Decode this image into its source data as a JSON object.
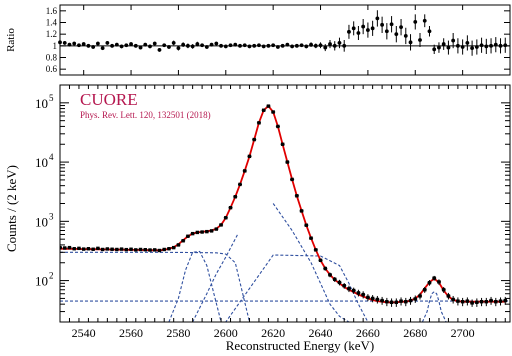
{
  "colors": {
    "data": "#000000",
    "fit": "#e00000",
    "component": "#3050a0",
    "annotation": "#b5174f",
    "ref_line": "#000000"
  },
  "annotation": {
    "title": "CUORE",
    "subtitle": "Phys. Rev. Lett. 120, 132501 (2018)"
  },
  "chart_data": [
    {
      "type": "scatter",
      "panel": "ratio",
      "title": "",
      "ylabel": "Ratio",
      "xlim": [
        2530,
        2720
      ],
      "ylim": [
        0.5,
        1.7
      ],
      "y_ticks": [
        "0.6",
        "0.8",
        "1",
        "1.2",
        "1.4",
        "1.6"
      ],
      "y_tick_values": [
        0.6,
        0.8,
        1.0,
        1.2,
        1.4,
        1.6
      ],
      "reference_line": 1.0,
      "x": [
        2530,
        2532,
        2534,
        2536,
        2538,
        2540,
        2542,
        2544,
        2546,
        2548,
        2550,
        2552,
        2554,
        2556,
        2558,
        2560,
        2562,
        2564,
        2566,
        2568,
        2570,
        2572,
        2574,
        2576,
        2578,
        2580,
        2582,
        2584,
        2586,
        2588,
        2590,
        2592,
        2594,
        2596,
        2598,
        2600,
        2602,
        2604,
        2606,
        2608,
        2610,
        2612,
        2614,
        2616,
        2618,
        2620,
        2622,
        2624,
        2626,
        2628,
        2630,
        2632,
        2634,
        2636,
        2638,
        2640,
        2642,
        2644,
        2646,
        2648,
        2650,
        2652,
        2654,
        2656,
        2658,
        2660,
        2662,
        2664,
        2666,
        2668,
        2670,
        2672,
        2674,
        2676,
        2678,
        2680,
        2682,
        2684,
        2686,
        2688,
        2690,
        2692,
        2694,
        2696,
        2698,
        2700,
        2702,
        2704,
        2706,
        2708,
        2710,
        2712,
        2714,
        2716,
        2718
      ],
      "values": [
        1.06,
        1.05,
        1.02,
        1.04,
        1.01,
        1.03,
        1.0,
        0.98,
        1.04,
        0.96,
        1.05,
        1.0,
        1.02,
        0.99,
        1.01,
        1.03,
        1.0,
        0.97,
        1.02,
        0.99,
        1.04,
        0.93,
        1.01,
        0.98,
        1.05,
        0.96,
        1.02,
        1.0,
        0.99,
        1.03,
        1.01,
        0.98,
        1.02,
        1.04,
        1.0,
        0.99,
        1.01,
        1.02,
        1.0,
        1.01,
        0.99,
        1.0,
        1.01,
        0.99,
        1.0,
        1.01,
        0.98,
        1.0,
        1.02,
        0.99,
        1.0,
        1.01,
        0.99,
        1.02,
        1.0,
        1.01,
        0.97,
        1.03,
        1.0,
        1.05,
        1.0,
        1.24,
        1.3,
        1.22,
        1.33,
        1.27,
        1.3,
        1.47,
        1.36,
        1.25,
        1.37,
        1.2,
        1.32,
        1.17,
        1.06,
        1.41,
        1.1,
        1.43,
        1.25,
        0.94,
        0.97,
        1.03,
        0.97,
        1.09,
        1.0,
        0.98,
        1.05,
        0.96,
        0.98,
        1.01,
        0.99,
        1.0,
        1.02,
        1.0,
        1.01
      ],
      "errors": [
        0.03,
        0.03,
        0.03,
        0.03,
        0.03,
        0.03,
        0.03,
        0.03,
        0.03,
        0.03,
        0.03,
        0.03,
        0.03,
        0.03,
        0.03,
        0.03,
        0.03,
        0.03,
        0.03,
        0.03,
        0.03,
        0.03,
        0.03,
        0.03,
        0.04,
        0.04,
        0.04,
        0.04,
        0.04,
        0.04,
        0.03,
        0.03,
        0.03,
        0.03,
        0.02,
        0.02,
        0.02,
        0.02,
        0.01,
        0.01,
        0.01,
        0.01,
        0.01,
        0.01,
        0.01,
        0.01,
        0.01,
        0.02,
        0.02,
        0.02,
        0.02,
        0.03,
        0.03,
        0.04,
        0.04,
        0.05,
        0.06,
        0.07,
        0.08,
        0.09,
        0.1,
        0.12,
        0.12,
        0.12,
        0.13,
        0.13,
        0.13,
        0.14,
        0.14,
        0.14,
        0.14,
        0.14,
        0.14,
        0.14,
        0.14,
        0.13,
        0.12,
        0.11,
        0.09,
        0.08,
        0.09,
        0.1,
        0.12,
        0.13,
        0.13,
        0.13,
        0.13,
        0.13,
        0.13,
        0.13,
        0.13,
        0.13,
        0.13,
        0.13,
        0.13
      ]
    },
    {
      "type": "scatter",
      "panel": "main",
      "title": "",
      "xlabel": "Reconstructed Energy (keV)",
      "ylabel": "Counts / (2 keV)",
      "xlim": [
        2530,
        2720
      ],
      "ylim": [
        20,
        200000
      ],
      "y_scale": "log",
      "x_ticks": [
        "2540",
        "2560",
        "2580",
        "2600",
        "2620",
        "2640",
        "2660",
        "2680",
        "2700"
      ],
      "x_tick_values": [
        2540,
        2560,
        2580,
        2600,
        2620,
        2640,
        2660,
        2680,
        2700
      ],
      "y_ticks": [
        "10",
        "10",
        "10",
        "10"
      ],
      "y_tick_exponents": [
        "2",
        "3",
        "4",
        "5"
      ],
      "y_tick_values": [
        100,
        1000,
        10000,
        100000
      ],
      "grid": false,
      "legend": "none",
      "series": [
        {
          "kind": "data",
          "x": [
            2530,
            2532,
            2534,
            2536,
            2538,
            2540,
            2542,
            2544,
            2546,
            2548,
            2550,
            2552,
            2554,
            2556,
            2558,
            2560,
            2562,
            2564,
            2566,
            2568,
            2570,
            2572,
            2574,
            2576,
            2578,
            2580,
            2582,
            2584,
            2586,
            2588,
            2590,
            2592,
            2594,
            2596,
            2598,
            2600,
            2602,
            2604,
            2606,
            2608,
            2610,
            2612,
            2614,
            2616,
            2618,
            2620,
            2622,
            2624,
            2626,
            2628,
            2630,
            2632,
            2634,
            2636,
            2638,
            2640,
            2642,
            2644,
            2646,
            2648,
            2650,
            2652,
            2654,
            2656,
            2658,
            2660,
            2662,
            2664,
            2666,
            2668,
            2670,
            2672,
            2674,
            2676,
            2678,
            2680,
            2682,
            2684,
            2686,
            2688,
            2690,
            2692,
            2694,
            2696,
            2698,
            2700,
            2702,
            2704,
            2706,
            2708,
            2710,
            2712,
            2714,
            2716,
            2718
          ],
          "values": [
            360,
            355,
            360,
            345,
            350,
            340,
            345,
            338,
            350,
            335,
            342,
            338,
            335,
            340,
            333,
            338,
            330,
            335,
            332,
            328,
            330,
            322,
            335,
            345,
            360,
            400,
            470,
            560,
            620,
            650,
            660,
            670,
            690,
            740,
            870,
            1150,
            1700,
            2600,
            4200,
            7100,
            12500,
            24000,
            46000,
            75000,
            88000,
            70000,
            40000,
            20000,
            10000,
            5100,
            2700,
            1500,
            860,
            520,
            330,
            220,
            160,
            125,
            105,
            93,
            82,
            73,
            68,
            62,
            58,
            52,
            50,
            48,
            46,
            44,
            43,
            43,
            45,
            44,
            46,
            49,
            55,
            70,
            92,
            110,
            95,
            70,
            55,
            48,
            45,
            44,
            45,
            42,
            43,
            44,
            44,
            46,
            44,
            45,
            46
          ],
          "errors": [
            19,
            19,
            19,
            19,
            19,
            18,
            19,
            18,
            19,
            18,
            18,
            18,
            18,
            18,
            18,
            18,
            18,
            18,
            18,
            18,
            18,
            18,
            18,
            19,
            19,
            20,
            22,
            24,
            25,
            25,
            26,
            26,
            26,
            27,
            29,
            34,
            41,
            51,
            65,
            84,
            112,
            155,
            214,
            274,
            297,
            265,
            200,
            141,
            100,
            71,
            52,
            39,
            29,
            23,
            18,
            15,
            13,
            11,
            10,
            10,
            9,
            9,
            8,
            8,
            8,
            7,
            7,
            7,
            7,
            7,
            7,
            7,
            7,
            7,
            7,
            7,
            7,
            8,
            10,
            10,
            10,
            8,
            7,
            7,
            7,
            7,
            7,
            6,
            7,
            7,
            7,
            7,
            7,
            7,
            7
          ]
        },
        {
          "kind": "fit",
          "x": [
            2530,
            2532,
            2534,
            2536,
            2538,
            2540,
            2542,
            2544,
            2546,
            2548,
            2550,
            2552,
            2554,
            2556,
            2558,
            2560,
            2562,
            2564,
            2566,
            2568,
            2570,
            2572,
            2574,
            2576,
            2578,
            2580,
            2582,
            2584,
            2586,
            2588,
            2590,
            2592,
            2594,
            2596,
            2598,
            2600,
            2602,
            2604,
            2606,
            2608,
            2610,
            2612,
            2614,
            2616,
            2618,
            2620,
            2622,
            2624,
            2626,
            2628,
            2630,
            2632,
            2634,
            2636,
            2638,
            2640,
            2642,
            2644,
            2646,
            2648,
            2650,
            2652,
            2654,
            2656,
            2658,
            2660,
            2662,
            2664,
            2666,
            2668,
            2670,
            2672,
            2674,
            2676,
            2678,
            2680,
            2682,
            2684,
            2686,
            2688,
            2690,
            2692,
            2694,
            2696,
            2698,
            2700,
            2702,
            2704,
            2706,
            2708,
            2710,
            2712,
            2714,
            2716,
            2718
          ],
          "values": [
            345,
            344,
            343,
            342,
            341,
            340,
            339,
            338,
            337,
            336,
            335,
            334,
            333,
            332,
            331,
            330,
            329,
            328,
            327,
            326,
            325,
            325,
            330,
            345,
            365,
            410,
            480,
            560,
            620,
            650,
            665,
            680,
            700,
            750,
            870,
            1150,
            1700,
            2600,
            4200,
            7100,
            12500,
            24000,
            46000,
            75000,
            88000,
            70000,
            40000,
            20000,
            10000,
            5100,
            2700,
            1500,
            860,
            520,
            330,
            220,
            160,
            125,
            103,
            90,
            78,
            70,
            64,
            58,
            54,
            50,
            47,
            45,
            44,
            43,
            43,
            43,
            44,
            44,
            46,
            50,
            58,
            74,
            94,
            108,
            93,
            68,
            54,
            47,
            45,
            44,
            44,
            44,
            44,
            44,
            44,
            44,
            44,
            44,
            44
          ]
        },
        {
          "kind": "component-flat",
          "x": [
            2530,
            2720
          ],
          "values": [
            45,
            45
          ]
        },
        {
          "kind": "component-continuum",
          "x": [
            2530,
            2560,
            2580,
            2596,
            2600,
            2604,
            2610
          ],
          "values": [
            300,
            300,
            299,
            294,
            280,
            200,
            20
          ]
        },
        {
          "kind": "component-step",
          "x": [
            2530,
            2600,
            2620,
            2640,
            2648,
            2652,
            2656,
            2660
          ],
          "values": [
            20,
            20,
            270,
            260,
            180,
            90,
            40,
            20
          ]
        },
        {
          "kind": "component-peak",
          "x": [
            2576,
            2580,
            2583,
            2586,
            2589,
            2592,
            2595,
            2598
          ],
          "values": [
            20,
            50,
            150,
            300,
            310,
            180,
            60,
            20
          ]
        },
        {
          "kind": "component-tail",
          "x": [
            2586,
            2592,
            2596,
            2600,
            2605
          ],
          "values": [
            20,
            60,
            130,
            250,
            600
          ]
        },
        {
          "kind": "component-shoulder",
          "x": [
            2620,
            2628,
            2636,
            2640,
            2644,
            2648,
            2652
          ],
          "values": [
            2000,
            700,
            200,
            90,
            40,
            25,
            20
          ]
        },
        {
          "kind": "component-peak",
          "x": [
            2683,
            2685,
            2686,
            2687,
            2688,
            2689,
            2690,
            2691,
            2693
          ],
          "values": [
            20,
            30,
            45,
            60,
            65,
            60,
            45,
            30,
            20
          ]
        }
      ]
    }
  ]
}
